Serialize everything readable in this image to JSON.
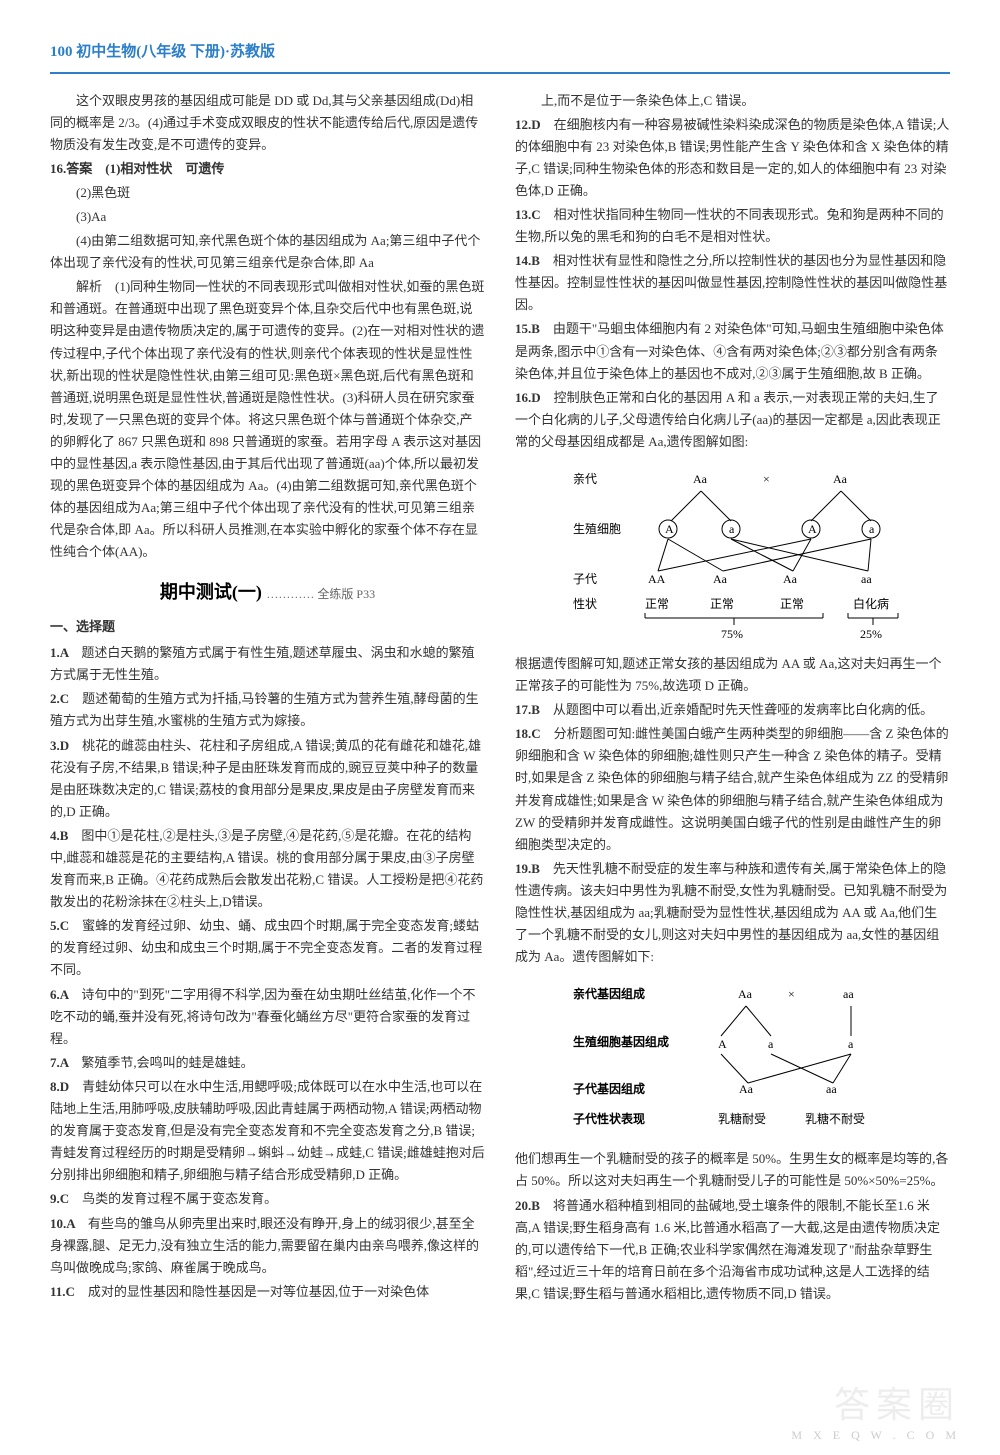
{
  "header": "100 初中生物(八年级 下册)·苏教版",
  "left": {
    "intro_paras": [
      "这个双眼皮男孩的基因组成可能是 DD 或 Dd,其与父亲基因组成(Dd)相同的概率是 2/3。(4)通过手术变成双眼皮的性状不能遗传给后代,原因是遗传物质没有发生改变,是不可遗传的变异。",
      "16.答案　(1)相对性状　可遗传",
      "(2)黑色斑",
      "(3)Aa",
      "(4)由第二组数据可知,亲代黑色斑个体的基因组成为 Aa;第三组中子代个体出现了亲代没有的性状,可见第三组亲代是杂合体,即 Aa",
      "解析　(1)同种生物同一性状的不同表现形式叫做相对性状,如蚕的黑色斑和普通斑。在普通斑中出现了黑色斑变异个体,且杂交后代中也有黑色斑,说明这种变异是由遗传物质决定的,属于可遗传的变异。(2)在一对相对性状的遗传过程中,子代个体出现了亲代没有的性状,则亲代个体表现的性状是显性性状,新出现的性状是隐性性状,由第三组可见:黑色斑×黑色斑,后代有黑色斑和普通斑,说明黑色斑是显性性状,普通斑是隐性性状。(3)科研人员在研究家蚕时,发现了一只黑色斑的变异个体。将这只黑色斑个体与普通斑个体杂交,产的卵孵化了 867 只黑色斑和 898 只普通斑的家蚕。若用字母 A 表示这对基因中的显性基因,a 表示隐性基因,由于其后代出现了普通斑(aa)个体,所以最初发现的黑色斑变异个体的基因组成为 Aa。(4)由第二组数据可知,亲代黑色斑个体的基因组成为Aa;第三组中子代个体出现了亲代没有的性状,可见第三组亲代是杂合体,即 Aa。所以科研人员推测,在本实验中孵化的家蚕个体不存在显性纯合个体(AA)。"
    ],
    "section_title": "期中测试(一)",
    "section_sub": "………… 全练版 P33",
    "subsection": "一、选择题",
    "questions": [
      {
        "num": "1.A",
        "text": "题述白天鹅的繁殖方式属于有性生殖,题述草履虫、涡虫和水螅的繁殖方式属于无性生殖。"
      },
      {
        "num": "2.C",
        "text": "题述葡萄的生殖方式为扦插,马铃薯的生殖方式为营养生殖,酵母菌的生殖方式为出芽生殖,水蜜桃的生殖方式为嫁接。"
      },
      {
        "num": "3.D",
        "text": "桃花的雌蕊由柱头、花柱和子房组成,A 错误;黄瓜的花有雌花和雄花,雄花没有子房,不结果,B 错误;种子是由胚珠发育而成的,豌豆豆荚中种子的数量是由胚珠数决定的,C 错误;荔枝的食用部分是果皮,果皮是由子房壁发育而来的,D 正确。"
      },
      {
        "num": "4.B",
        "text": "图中①是花柱,②是柱头,③是子房壁,④是花药,⑤是花瓣。在花的结构中,雌蕊和雄蕊是花的主要结构,A 错误。桃的食用部分属于果皮,由③子房壁发育而来,B 正确。④花药成熟后会散发出花粉,C 错误。人工授粉是把④花药散发出的花粉涂抹在②柱头上,D错误。"
      },
      {
        "num": "5.C",
        "text": "蜜蜂的发育经过卵、幼虫、蛹、成虫四个时期,属于完全变态发育;蝼蛄的发育经过卵、幼虫和成虫三个时期,属于不完全变态发育。二者的发育过程不同。"
      },
      {
        "num": "6.A",
        "text": "诗句中的\"到死\"二字用得不科学,因为蚕在幼虫期吐丝结茧,化作一个不吃不动的蛹,蚕并没有死,将诗句改为\"春蚕化蛹丝方尽\"更符合家蚕的发育过程。"
      },
      {
        "num": "7.A",
        "text": "繁殖季节,会鸣叫的蛙是雄蛙。"
      },
      {
        "num": "8.D",
        "text": "青蛙幼体只可以在水中生活,用鳃呼吸;成体既可以在水中生活,也可以在陆地上生活,用肺呼吸,皮肤辅助呼吸,因此青蛙属于两栖动物,A 错误;两栖动物的发育属于变态发育,但是没有完全变态发育和不完全变态发育之分,B 错误;青蛙发育过程经历的时期是受精卵→蝌蚪→幼蛙→成蛙,C 错误;雌雄蛙抱对后分别排出卵细胞和精子,卵细胞与精子结合形成受精卵,D 正确。"
      },
      {
        "num": "9.C",
        "text": "鸟类的发育过程不属于变态发育。"
      },
      {
        "num": "10.A",
        "text": "有些鸟的雏鸟从卵壳里出来时,眼还没有睁开,身上的绒羽很少,甚至全身裸露,腿、足无力,没有独立生活的能力,需要留在巢内由亲鸟喂养,像这样的鸟叫做晚成鸟;家鸽、麻雀属于晚成鸟。"
      },
      {
        "num": "11.C",
        "text": "成对的显性基因和隐性基因是一对等位基因,位于一对染色体"
      }
    ]
  },
  "right": {
    "continuation": "上,而不是位于一条染色体上,C 错误。",
    "questions": [
      {
        "num": "12.D",
        "text": "在细胞核内有一种容易被碱性染料染成深色的物质是染色体,A 错误;人的体细胞中有 23 对染色体,B 错误;男性能产生含 Y 染色体和含 X 染色体的精子,C 错误;同种生物染色体的形态和数目是一定的,如人的体细胞中有 23 对染色体,D 正确。"
      },
      {
        "num": "13.C",
        "text": "相对性状指同种生物同一性状的不同表现形式。兔和狗是两种不同的生物,所以兔的黑毛和狗的白毛不是相对性状。"
      },
      {
        "num": "14.B",
        "text": "相对性状有显性和隐性之分,所以控制性状的基因也分为显性基因和隐性基因。控制显性性状的基因叫做显性基因,控制隐性性状的基因叫做隐性基因。"
      },
      {
        "num": "15.B",
        "text": "由题干\"马蛔虫体细胞内有 2 对染色体\"可知,马蛔虫生殖细胞中染色体是两条,图示中①含有一对染色体、④含有两对染色体;②③都分别含有两条染色体,并且位于染色体上的基因也不成对,②③属于生殖细胞,故 B 正确。"
      },
      {
        "num": "16.D",
        "text": "控制肤色正常和白化的基因用 A 和 a 表示,一对表现正常的夫妇,生了一个白化病的儿子,父母遗传给白化病儿子(aa)的基因一定都是 a,因此表现正常的父母基因组成都是 Aa,遗传图解如图:"
      }
    ],
    "diagram1": {
      "rows": [
        "亲代",
        "生殖细胞",
        "子代",
        "性状"
      ],
      "parent_left": "Aa",
      "parent_right": "Aa",
      "cross": "×",
      "gametes": [
        "A",
        "a",
        "A",
        "a"
      ],
      "offspring": [
        "AA",
        "Aa",
        "Aa",
        "aa"
      ],
      "phenotype": [
        "正常",
        "正常",
        "正常",
        "白化病"
      ],
      "ratio_left": "75%",
      "ratio_right": "25%",
      "line_color": "#000",
      "font_size": 12
    },
    "after_d1": "根据遗传图解可知,题述正常女孩的基因组成为 AA 或 Aa,这对夫妇再生一个正常孩子的可能性为 75%,故选项 D 正确。",
    "questions2": [
      {
        "num": "17.B",
        "text": "从题图中可以看出,近亲婚配时先天性聋哑的发病率比白化病的低。"
      },
      {
        "num": "18.C",
        "text": "分析题图可知:雌性美国白蛾产生两种类型的卵细胞——含 Z 染色体的卵细胞和含 W 染色体的卵细胞;雄性则只产生一种含 Z 染色体的精子。受精时,如果是含 Z 染色体的卵细胞与精子结合,就产生染色体组成为 ZZ 的受精卵并发育成雄性;如果是含 W 染色体的卵细胞与精子结合,就产生染色体组成为 ZW 的受精卵并发育成雌性。这说明美国白蛾子代的性别是由雌性产生的卵细胞类型决定的。"
      },
      {
        "num": "19.B",
        "text": "先天性乳糖不耐受症的发生率与种族和遗传有关,属于常染色体上的隐性遗传病。该夫妇中男性为乳糖不耐受,女性为乳糖耐受。已知乳糖不耐受为隐性性状,基因组成为 aa;乳糖耐受为显性性状,基因组成为 AA 或 Aa,他们生了一个乳糖不耐受的女儿,则这对夫妇中男性的基因组成为 aa,女性的基因组成为 Aa。遗传图解如下:"
      }
    ],
    "diagram2": {
      "rows": [
        "亲代基因组成",
        "生殖细胞基因组成",
        "子代基因组成",
        "子代性状表现"
      ],
      "parent_left": "Aa",
      "parent_right": "aa",
      "cross": "×",
      "gametes": [
        "A",
        "a",
        "a"
      ],
      "offspring": [
        "Aa",
        "aa"
      ],
      "phenotype": [
        "乳糖耐受",
        "乳糖不耐受"
      ],
      "line_color": "#000",
      "font_size": 12
    },
    "after_d2": "他们想再生一个乳糖耐受的孩子的概率是 50%。生男生女的概率是均等的,各占 50%。所以这对夫妇再生一个乳糖耐受儿子的可能性是 50%×50%=25%。",
    "questions3": [
      {
        "num": "20.B",
        "text": "将普通水稻种植到相同的盐碱地,受土壤条件的限制,不能长至1.6 米高,A 错误;野生稻身高有 1.6 米,比普通水稻高了一大截,这是由遗传物质决定的,可以遗传给下一代,B 正确;农业科学家偶然在海滩发现了\"耐盐杂草野生稻\",经过近三十年的培育日前在多个沿海省市成功试种,这是人工选择的结果,C 错误;野生稻与普通水稻相比,遗传物质不同,D 错误。"
      }
    ]
  },
  "watermark": "答案圈",
  "watermark_sub": "M X E Q W . C O M"
}
